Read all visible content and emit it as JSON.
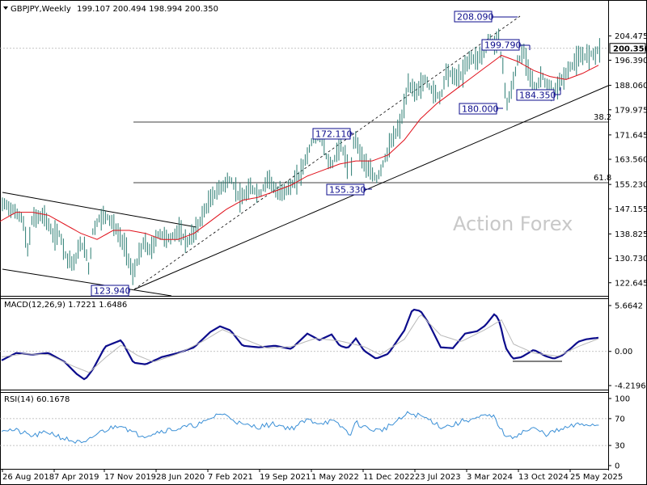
{
  "header": {
    "symbol": "GBPJPY,Weekly",
    "ohlc": "199.107 200.494 198.994 200.350"
  },
  "watermark": "Action Forex",
  "price_panel": {
    "y_ticks": [
      "204.475",
      "196.390",
      "188.060",
      "179.975",
      "171.645",
      "163.560",
      "155.230",
      "147.155",
      "138.825",
      "130.730",
      "122.645"
    ],
    "current_price_label": "200.350",
    "fib_levels": [
      {
        "label": "38.2",
        "price": 175.9
      },
      {
        "label": "61.8",
        "price": 155.8
      }
    ],
    "annotations": [
      {
        "label": "208.090",
        "price": 208.09
      },
      {
        "label": "199.790",
        "price": 199.79
      },
      {
        "label": "184.350",
        "price": 184.35
      },
      {
        "label": "180.000",
        "price": 180.0
      },
      {
        "label": "172.110",
        "price": 172.11
      },
      {
        "label": "155.330",
        "price": 155.33
      },
      {
        "label": "123.940",
        "price": 123.94
      }
    ]
  },
  "macd_panel": {
    "title": "MACD(12,26,9) 1.7221 1.6486",
    "y_ticks": [
      "5.6642",
      "0.00",
      "-4.2196"
    ]
  },
  "rsi_panel": {
    "title": "RSI(14) 60.1678",
    "y_ticks": [
      "100",
      "70",
      "30",
      "0"
    ]
  },
  "x_ticks": [
    "26 Aug 2018",
    "7 Apr 2019",
    "17 Nov 2019",
    "28 Jun 2020",
    "7 Feb 2021",
    "19 Sep 2021",
    "1 May 2022",
    "11 Dec 2022",
    "23 Jul 2023",
    "3 Mar 2024",
    "13 Oct 2024",
    "25 May 2025"
  ],
  "colors": {
    "price": "#2a7c72",
    "ma": "#e0101a",
    "macd": "#0c0c8c",
    "signal": "#b8b8b8",
    "rsi": "#3a8fd6"
  },
  "chart_data": [
    {
      "type": "line",
      "title": "GBPJPY,Weekly",
      "ylim": [
        119.9,
        211.0
      ],
      "x": [
        "26 Aug 2018",
        "7 Apr 2019",
        "17 Nov 2019",
        "28 Jun 2020",
        "7 Feb 2021",
        "19 Sep 2021",
        "1 May 2022",
        "11 Dec 2022",
        "23 Jul 2023",
        "3 Mar 2024",
        "13 Oct 2024",
        "25 May 2025"
      ],
      "anchors": [
        [
          0,
          147
        ],
        [
          5,
          149
        ],
        [
          14,
          147
        ],
        [
          28,
          144
        ],
        [
          34,
          133
        ],
        [
          40,
          144
        ],
        [
          55,
          145
        ],
        [
          66,
          138
        ],
        [
          74,
          139
        ],
        [
          82,
          131
        ],
        [
          92,
          129
        ],
        [
          100,
          136
        ],
        [
          107,
          132
        ],
        [
          110,
          127
        ],
        [
          115,
          140
        ],
        [
          123,
          144
        ],
        [
          131,
          145
        ],
        [
          138,
          143
        ],
        [
          148,
          138
        ],
        [
          157,
          133
        ],
        [
          164,
          125
        ],
        [
          170,
          130
        ],
        [
          178,
          136
        ],
        [
          186,
          133
        ],
        [
          196,
          139
        ],
        [
          210,
          137
        ],
        [
          220,
          140
        ],
        [
          232,
          136
        ],
        [
          244,
          141
        ],
        [
          252,
          146
        ],
        [
          262,
          151
        ],
        [
          272,
          154
        ],
        [
          285,
          157
        ],
        [
          298,
          150
        ],
        [
          310,
          154
        ],
        [
          322,
          152
        ],
        [
          332,
          158
        ],
        [
          342,
          152
        ],
        [
          358,
          154
        ],
        [
          370,
          158
        ],
        [
          380,
          165
        ],
        [
          385,
          169
        ],
        [
          392,
          172
        ],
        [
          398,
          170
        ],
        [
          405,
          163
        ],
        [
          412,
          162
        ],
        [
          420,
          169
        ],
        [
          428,
          164
        ],
        [
          432,
          153
        ],
        [
          438,
          172
        ],
        [
          445,
          166
        ],
        [
          455,
          160
        ],
        [
          466,
          157
        ],
        [
          475,
          163
        ],
        [
          485,
          170
        ],
        [
          495,
          175
        ],
        [
          505,
          188
        ],
        [
          515,
          186
        ],
        [
          526,
          190
        ],
        [
          535,
          186
        ],
        [
          545,
          184
        ],
        [
          552,
          193
        ],
        [
          560,
          191
        ],
        [
          570,
          191
        ],
        [
          580,
          197
        ],
        [
          590,
          197
        ],
        [
          598,
          199
        ],
        [
          605,
          203
        ],
        [
          612,
          201
        ],
        [
          616,
          206
        ],
        [
          618,
          199
        ],
        [
          622,
          195
        ],
        [
          626,
          181
        ],
        [
          632,
          186
        ],
        [
          640,
          196
        ],
        [
          648,
          199
        ],
        [
          655,
          192
        ],
        [
          662,
          186
        ],
        [
          670,
          192
        ],
        [
          678,
          186
        ],
        [
          685,
          186
        ],
        [
          695,
          190
        ],
        [
          705,
          194
        ],
        [
          715,
          197
        ],
        [
          725,
          198
        ],
        [
          737,
          199
        ],
        [
          742,
          200.35
        ]
      ],
      "ma_anchors": [
        [
          0,
          143
        ],
        [
          20,
          146
        ],
        [
          40,
          146
        ],
        [
          60,
          145
        ],
        [
          80,
          142
        ],
        [
          100,
          139
        ],
        [
          120,
          137
        ],
        [
          140,
          140
        ],
        [
          160,
          140
        ],
        [
          180,
          139
        ],
        [
          200,
          137
        ],
        [
          220,
          137
        ],
        [
          240,
          139
        ],
        [
          260,
          143
        ],
        [
          280,
          147
        ],
        [
          300,
          150
        ],
        [
          320,
          151
        ],
        [
          340,
          153
        ],
        [
          360,
          155
        ],
        [
          380,
          158
        ],
        [
          400,
          160
        ],
        [
          420,
          162
        ],
        [
          440,
          163
        ],
        [
          460,
          163
        ],
        [
          480,
          165
        ],
        [
          500,
          170
        ],
        [
          520,
          177
        ],
        [
          540,
          182
        ],
        [
          560,
          186
        ],
        [
          580,
          190
        ],
        [
          600,
          194
        ],
        [
          620,
          198
        ],
        [
          640,
          196
        ],
        [
          660,
          193
        ],
        [
          680,
          191
        ],
        [
          700,
          190
        ],
        [
          720,
          192
        ],
        [
          742,
          195
        ]
      ]
    },
    {
      "type": "line",
      "title": "MACD(12,26,9) 1.7221 1.6486",
      "ylim": [
        -4.2196,
        5.6642
      ],
      "series": [
        {
          "name": "MACD",
          "anchors": [
            [
              0,
              -1.2
            ],
            [
              20,
              -0.2
            ],
            [
              40,
              -0.4
            ],
            [
              60,
              -0.2
            ],
            [
              80,
              -1.3
            ],
            [
              95,
              -2.8
            ],
            [
              105,
              -3.5
            ],
            [
              115,
              -2.2
            ],
            [
              130,
              0.6
            ],
            [
              150,
              1.4
            ],
            [
              165,
              -1.4
            ],
            [
              180,
              -1.6
            ],
            [
              200,
              -0.7
            ],
            [
              220,
              -0.2
            ],
            [
              240,
              0.5
            ],
            [
              260,
              2.4
            ],
            [
              272,
              3.1
            ],
            [
              285,
              2.6
            ],
            [
              300,
              0.7
            ],
            [
              320,
              0.5
            ],
            [
              340,
              0.7
            ],
            [
              360,
              0.3
            ],
            [
              380,
              2.2
            ],
            [
              395,
              1.4
            ],
            [
              410,
              2.1
            ],
            [
              420,
              0.7
            ],
            [
              430,
              0.4
            ],
            [
              440,
              1.6
            ],
            [
              450,
              0.1
            ],
            [
              465,
              -0.9
            ],
            [
              480,
              -0.3
            ],
            [
              500,
              2.6
            ],
            [
              510,
              5.2
            ],
            [
              520,
              5.0
            ],
            [
              530,
              3.5
            ],
            [
              545,
              0.5
            ],
            [
              560,
              0.4
            ],
            [
              575,
              2.2
            ],
            [
              590,
              2.5
            ],
            [
              600,
              3.2
            ],
            [
              612,
              4.7
            ],
            [
              618,
              3.6
            ],
            [
              625,
              0.5
            ],
            [
              634,
              -0.9
            ],
            [
              645,
              -0.7
            ],
            [
              660,
              0.2
            ],
            [
              675,
              -0.6
            ],
            [
              685,
              -0.9
            ],
            [
              695,
              -0.5
            ],
            [
              705,
              0.3
            ],
            [
              715,
              1.2
            ],
            [
              725,
              1.5
            ],
            [
              742,
              1.72
            ]
          ]
        },
        {
          "name": "Signal",
          "anchors": [
            [
              0,
              -0.7
            ],
            [
              30,
              -0.3
            ],
            [
              60,
              -0.4
            ],
            [
              90,
              -1.8
            ],
            [
              110,
              -2.6
            ],
            [
              130,
              -0.8
            ],
            [
              150,
              0.8
            ],
            [
              170,
              -0.5
            ],
            [
              190,
              -1.3
            ],
            [
              220,
              -0.3
            ],
            [
              250,
              1.2
            ],
            [
              275,
              2.7
            ],
            [
              300,
              1.6
            ],
            [
              330,
              0.4
            ],
            [
              360,
              0.6
            ],
            [
              390,
              1.6
            ],
            [
              420,
              1.3
            ],
            [
              450,
              0.6
            ],
            [
              470,
              -0.4
            ],
            [
              500,
              1.5
            ],
            [
              520,
              4.6
            ],
            [
              545,
              2.0
            ],
            [
              570,
              1.2
            ],
            [
              600,
              2.7
            ],
            [
              620,
              3.9
            ],
            [
              635,
              0.9
            ],
            [
              660,
              -0.2
            ],
            [
              690,
              -0.6
            ],
            [
              715,
              0.6
            ],
            [
              742,
              1.65
            ]
          ]
        }
      ]
    },
    {
      "type": "line",
      "title": "RSI(14) 60.1678",
      "ylim": [
        0,
        100
      ],
      "anchors": [
        [
          0,
          55
        ],
        [
          20,
          52
        ],
        [
          40,
          44
        ],
        [
          60,
          50
        ],
        [
          80,
          40
        ],
        [
          95,
          35
        ],
        [
          105,
          32
        ],
        [
          120,
          48
        ],
        [
          135,
          55
        ],
        [
          150,
          62
        ],
        [
          165,
          48
        ],
        [
          180,
          45
        ],
        [
          200,
          52
        ],
        [
          220,
          55
        ],
        [
          240,
          60
        ],
        [
          255,
          65
        ],
        [
          270,
          78
        ],
        [
          285,
          72
        ],
        [
          300,
          60
        ],
        [
          320,
          58
        ],
        [
          340,
          62
        ],
        [
          360,
          55
        ],
        [
          380,
          68
        ],
        [
          395,
          64
        ],
        [
          410,
          66
        ],
        [
          425,
          56
        ],
        [
          432,
          45
        ],
        [
          440,
          64
        ],
        [
          455,
          55
        ],
        [
          470,
          52
        ],
        [
          490,
          65
        ],
        [
          505,
          78
        ],
        [
          520,
          74
        ],
        [
          535,
          66
        ],
        [
          545,
          58
        ],
        [
          560,
          60
        ],
        [
          575,
          68
        ],
        [
          590,
          70
        ],
        [
          600,
          74
        ],
        [
          612,
          72
        ],
        [
          620,
          52
        ],
        [
          630,
          40
        ],
        [
          645,
          50
        ],
        [
          660,
          55
        ],
        [
          675,
          47
        ],
        [
          690,
          52
        ],
        [
          705,
          58
        ],
        [
          720,
          62
        ],
        [
          742,
          60.17
        ]
      ]
    }
  ]
}
